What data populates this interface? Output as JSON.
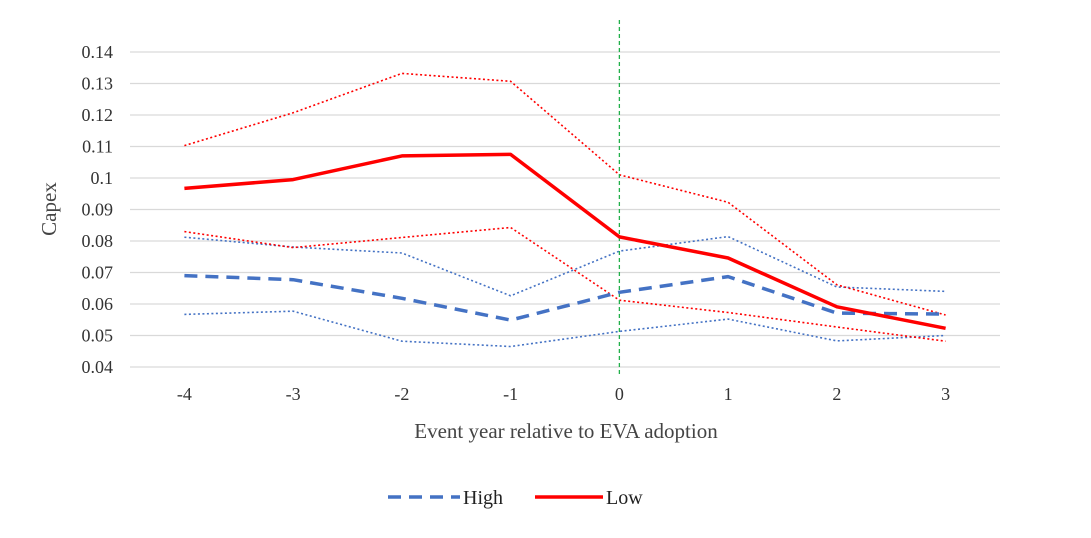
{
  "chart_data": {
    "type": "line",
    "xlabel": "Event year relative to EVA adoption",
    "ylabel": "Capex",
    "x": [
      -4,
      -3,
      -2,
      -1,
      0,
      1,
      2,
      3
    ],
    "x_tick_labels": [
      "-4",
      "-3",
      "-2",
      "-1",
      "0",
      "1",
      "2",
      "3"
    ],
    "ylim": [
      0.04,
      0.14
    ],
    "y_ticks": [
      0.04,
      0.05,
      0.06,
      0.07,
      0.08,
      0.09,
      0.1,
      0.11,
      0.12,
      0.13,
      0.14
    ],
    "y_tick_labels": [
      "0.04",
      "0.05",
      "0.06",
      "0.07",
      "0.08",
      "0.09",
      "0.1",
      "0.11",
      "0.12",
      "0.13",
      "0.14"
    ],
    "grid": "horizontal",
    "reference_line": {
      "x": 0,
      "color": "#22b04b",
      "style": "dashed"
    },
    "legend": {
      "position": "bottom"
    },
    "series": [
      {
        "name": "High",
        "color": "#4472c4",
        "style": "dashed",
        "values": [
          0.069,
          0.0677,
          0.0618,
          0.0549,
          0.0637,
          0.0687,
          0.0571,
          0.0568
        ]
      },
      {
        "name": "Low",
        "color": "#ff0000",
        "style": "solid",
        "values": [
          0.0967,
          0.0995,
          0.107,
          0.1075,
          0.0813,
          0.0746,
          0.0591,
          0.0523
        ]
      }
    ],
    "bands": [
      {
        "color": "#4472c4",
        "style": "dotted",
        "upper": [
          0.0812,
          0.0781,
          0.0762,
          0.0626,
          0.0768,
          0.0814,
          0.0654,
          0.064
        ],
        "lower": [
          0.0567,
          0.0577,
          0.0482,
          0.0465,
          0.0513,
          0.0552,
          0.0483,
          0.05
        ]
      },
      {
        "color": "#ff0000",
        "style": "dotted",
        "upper": [
          0.1103,
          0.1207,
          0.1332,
          0.1307,
          0.101,
          0.0923,
          0.0661,
          0.0565
        ],
        "lower": [
          0.083,
          0.0779,
          0.0811,
          0.0843,
          0.0612,
          0.0573,
          0.0527,
          0.0482
        ]
      }
    ]
  }
}
